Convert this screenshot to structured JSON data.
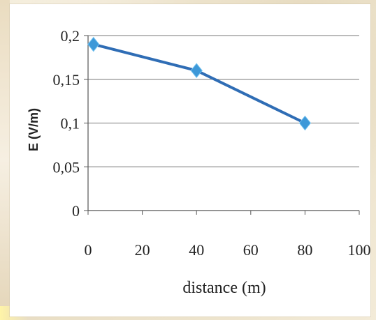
{
  "chart_data": {
    "type": "line",
    "xlabel": "distance (m)",
    "ylabel": "E (V/m)",
    "xlim": [
      0,
      100
    ],
    "ylim": [
      0,
      0.2
    ],
    "x_ticks": [
      0,
      20,
      40,
      60,
      80,
      100
    ],
    "x_tick_labels": [
      "0",
      "20",
      "40",
      "60",
      "80",
      "100"
    ],
    "y_ticks": [
      0,
      0.05,
      0.1,
      0.15,
      0.2
    ],
    "y_tick_labels": [
      "0",
      "0,05",
      "0,1",
      "0,15",
      "0,2"
    ],
    "grid": true,
    "series": [
      {
        "color": "#2f6db5",
        "marker_color": "#3d98d8",
        "points": [
          {
            "x": 2,
            "y": 0.19
          },
          {
            "x": 40,
            "y": 0.16
          },
          {
            "x": 80,
            "y": 0.1
          }
        ]
      }
    ]
  }
}
